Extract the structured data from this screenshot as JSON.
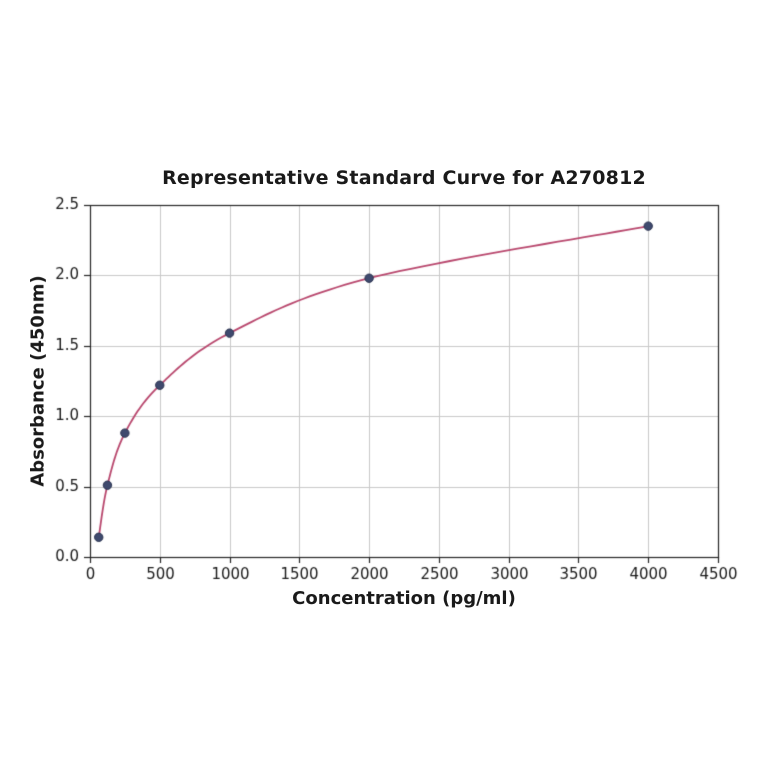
{
  "chart_data": {
    "type": "line",
    "title": "Representative Standard Curve for A270812",
    "xlabel": "Concentration (pg/ml)",
    "ylabel": "Absorbance (450nm)",
    "xlim": [
      0,
      4500
    ],
    "ylim": [
      0,
      2.5
    ],
    "x_ticks": [
      0,
      500,
      1000,
      1500,
      2000,
      2500,
      3000,
      3500,
      4000,
      4500
    ],
    "x_tick_labels": [
      "0",
      "500",
      "1000",
      "1500",
      "2000",
      "2500",
      "3000",
      "3500",
      "4000",
      "4500"
    ],
    "y_ticks": [
      0,
      0.5,
      1.0,
      1.5,
      2.0,
      2.5
    ],
    "y_tick_labels": [
      "0.0",
      "0.5",
      "1.0",
      "1.5",
      "2.0",
      "2.5"
    ],
    "grid": true,
    "legend": "none",
    "series": [
      {
        "name": "standard-curve",
        "points": [
          [
            62.5,
            0.14
          ],
          [
            125,
            0.51
          ],
          [
            250,
            0.88
          ],
          [
            500,
            1.22
          ],
          [
            1000,
            1.59
          ],
          [
            2000,
            1.98
          ],
          [
            4000,
            2.35
          ]
        ]
      }
    ],
    "style": {
      "line_color": "#b9486e",
      "marker_color": "#3f4a6e",
      "marker_edge_color": "#2b3350",
      "grid_color": "#c9c9c9",
      "axis_color": "#262626",
      "text_color": "#1a1a1a",
      "background": "#ffffff"
    }
  }
}
